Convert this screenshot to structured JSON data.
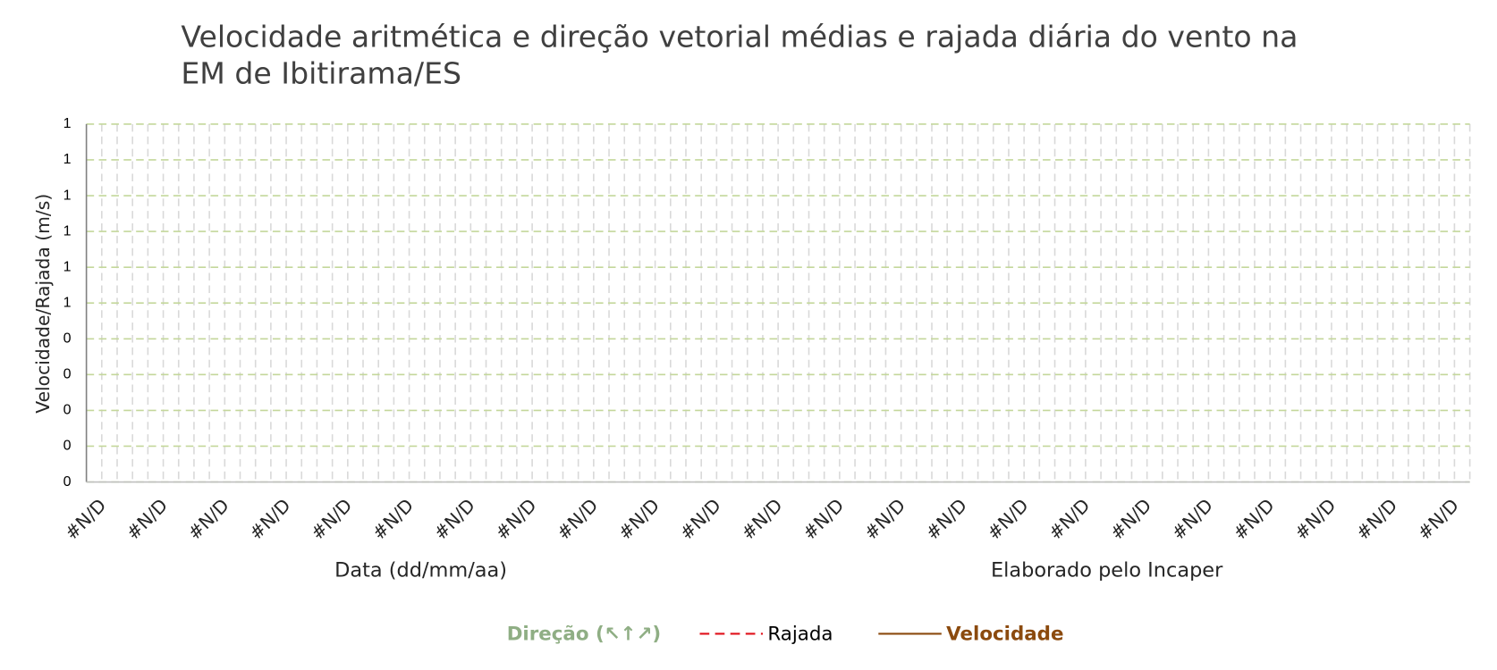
{
  "chart_data": {
    "type": "line",
    "title": "Velocidade aritmética e direção vetorial médias e rajada diária do vento na EM de Ibitirama/ES",
    "x_label": "Data (dd/mm/aa)",
    "y_label": "Velocidade/Rajada (m/s)",
    "annotation": "Elaborado pelo Incaper",
    "categories": [
      "#N/D",
      null,
      null,
      null,
      "#N/D",
      null,
      null,
      null,
      "#N/D",
      null,
      null,
      null,
      "#N/D",
      null,
      null,
      null,
      "#N/D",
      null,
      null,
      null,
      "#N/D",
      null,
      null,
      null,
      "#N/D",
      null,
      null,
      null,
      "#N/D",
      null,
      null,
      null,
      "#N/D",
      null,
      null,
      null,
      "#N/D",
      null,
      null,
      null,
      "#N/D",
      null,
      null,
      null,
      "#N/D",
      null,
      null,
      null,
      "#N/D",
      null,
      null,
      null,
      "#N/D",
      null,
      null,
      null,
      "#N/D",
      null,
      null,
      null,
      "#N/D",
      null,
      null,
      null,
      "#N/D",
      null,
      null,
      null,
      "#N/D",
      null,
      null,
      null,
      "#N/D",
      null,
      null,
      null,
      "#N/D",
      null,
      null,
      null,
      "#N/D",
      null,
      null,
      null,
      "#N/D",
      null,
      null,
      null,
      "#N/D",
      null
    ],
    "series": [
      {
        "name": "Direção (↖↑↗)",
        "color": "#8fae84",
        "style": "none",
        "values": [
          null,
          null,
          null,
          null,
          null,
          null,
          null,
          null,
          null,
          null,
          null,
          null,
          null,
          null,
          null,
          null,
          null,
          null,
          null,
          null,
          null,
          null,
          null,
          null,
          null,
          null,
          null,
          null,
          null,
          null,
          null,
          null,
          null,
          null,
          null,
          null,
          null,
          null,
          null,
          null,
          null,
          null,
          null,
          null,
          null,
          null,
          null,
          null,
          null,
          null,
          null,
          null,
          null,
          null,
          null,
          null,
          null,
          null,
          null,
          null,
          null,
          null,
          null,
          null,
          null,
          null,
          null,
          null,
          null,
          null,
          null,
          null,
          null,
          null,
          null,
          null,
          null,
          null,
          null,
          null,
          null,
          null,
          null,
          null,
          null,
          null,
          null,
          null,
          null,
          null
        ]
      },
      {
        "name": "Rajada",
        "color": "#e0101a",
        "style": "dashed",
        "values": [
          null,
          null,
          null,
          null,
          null,
          null,
          null,
          null,
          null,
          null,
          null,
          null,
          null,
          null,
          null,
          null,
          null,
          null,
          null,
          null,
          null,
          null,
          null,
          null,
          null,
          null,
          null,
          null,
          null,
          null,
          null,
          null,
          null,
          null,
          null,
          null,
          null,
          null,
          null,
          null,
          null,
          null,
          null,
          null,
          null,
          null,
          null,
          null,
          null,
          null,
          null,
          null,
          null,
          null,
          null,
          null,
          null,
          null,
          null,
          null,
          null,
          null,
          null,
          null,
          null,
          null,
          null,
          null,
          null,
          null,
          null,
          null,
          null,
          null,
          null,
          null,
          null,
          null,
          null,
          null,
          null,
          null,
          null,
          null,
          null,
          null,
          null,
          null,
          null,
          null
        ]
      },
      {
        "name": "Velocidade",
        "color": "#8b4a0e",
        "style": "solid",
        "values": [
          null,
          null,
          null,
          null,
          null,
          null,
          null,
          null,
          null,
          null,
          null,
          null,
          null,
          null,
          null,
          null,
          null,
          null,
          null,
          null,
          null,
          null,
          null,
          null,
          null,
          null,
          null,
          null,
          null,
          null,
          null,
          null,
          null,
          null,
          null,
          null,
          null,
          null,
          null,
          null,
          null,
          null,
          null,
          null,
          null,
          null,
          null,
          null,
          null,
          null,
          null,
          null,
          null,
          null,
          null,
          null,
          null,
          null,
          null,
          null,
          null,
          null,
          null,
          null,
          null,
          null,
          null,
          null,
          null,
          null,
          null,
          null,
          null,
          null,
          null,
          null,
          null,
          null,
          null,
          null,
          null,
          null,
          null,
          null,
          null,
          null,
          null,
          null,
          null,
          null
        ]
      }
    ],
    "ylim": [
      0,
      1
    ],
    "yticks": [
      0,
      {
        "value": 0.1,
        "label": "0"
      },
      {
        "value": 0.2,
        "label": "0"
      },
      {
        "value": 0.3,
        "label": "0"
      },
      {
        "value": 0.4,
        "label": "0"
      },
      {
        "value": 0.5,
        "label": "1"
      },
      {
        "value": 0.6,
        "label": "1"
      },
      {
        "value": 0.7,
        "label": "1"
      },
      {
        "value": 0.8,
        "label": "1"
      },
      {
        "value": 0.9,
        "label": "1"
      },
      1
    ],
    "grid": true
  }
}
